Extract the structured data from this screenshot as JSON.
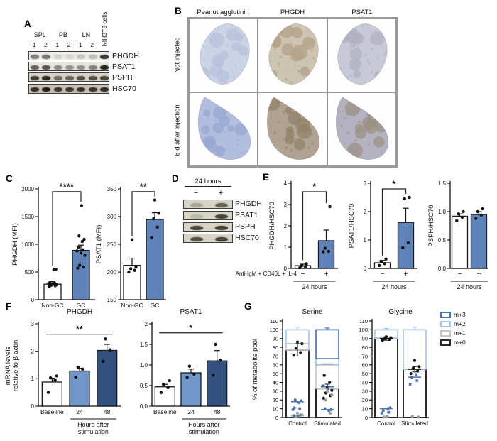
{
  "panels": {
    "a": "A",
    "b": "B",
    "c": "C",
    "d": "D",
    "e": "E",
    "f": "F",
    "g": "G"
  },
  "palette": {
    "white": "#ffffff",
    "mid_blue": "#5f82b8",
    "light_blue": "#7197c9",
    "dark_blue": "#33527f",
    "seg": {
      "m+0": "#2b2b2b",
      "m+1": "#c8c8c8",
      "m+2": "#a9c6e7",
      "m+3": "#4a72ad"
    },
    "dot": {
      "k": "#111111",
      "b": "#4a72ad",
      "g": "#9a9a9a"
    }
  },
  "panel_a": {
    "groups": [
      {
        "name": "SPL",
        "lanes": [
          "1",
          "2"
        ]
      },
      {
        "name": "PB",
        "lanes": [
          "1",
          "2"
        ]
      },
      {
        "name": "LN",
        "lanes": [
          "1",
          "2"
        ]
      }
    ],
    "extra_lane": "NIH3T3 cells",
    "rows": [
      {
        "name": "PHGDH",
        "bg": "#efede9",
        "bands": [
          0.5,
          0.55,
          0.12,
          0.1,
          0.18,
          0.22,
          0.85
        ]
      },
      {
        "name": "PSAT1",
        "bg": "#e9e6e0",
        "bands": [
          0.65,
          0.7,
          0.45,
          0.4,
          0.42,
          0.48,
          0.95
        ]
      },
      {
        "name": "PSPH",
        "bg": "#d8d3c8",
        "bands": [
          0.8,
          0.9,
          0.55,
          0.6,
          0.7,
          0.7,
          0.75
        ]
      },
      {
        "name": "HSC70",
        "bg": "#c9c4b6",
        "bands": [
          0.85,
          0.95,
          0.8,
          0.8,
          0.82,
          0.82,
          0.85
        ]
      }
    ]
  },
  "panel_b": {
    "col_headers": [
      "Peanut agglutinin",
      "PHGDH",
      "PSAT1"
    ],
    "row_labels": [
      "Not injected",
      "8 d after injection"
    ],
    "cells": [
      {
        "base": "#ccd3e6",
        "spot": "#b6c1dc"
      },
      {
        "base": "#cdc4b2",
        "spot": "#b3a288"
      },
      {
        "base": "#c7c9d6",
        "spot": "#b1b0c0"
      },
      {
        "base": "#b2bedd",
        "spot": "#97a7cf"
      },
      {
        "base": "#b0a392",
        "spot": "#93826a"
      },
      {
        "base": "#b4b1c1",
        "spot": "#9b9283"
      }
    ]
  },
  "panel_d": {
    "header": "24 hours",
    "lanes": [
      "−",
      "+"
    ],
    "rows": [
      {
        "name": "PHGDH",
        "bg": "#d9d5c6",
        "bands": [
          0.25,
          0.6
        ]
      },
      {
        "name": "PSAT1",
        "bg": "#d9d5c6",
        "bands": [
          0.15,
          0.75
        ]
      },
      {
        "name": "PSPH",
        "bg": "#d9d5c6",
        "bands": [
          0.75,
          0.8
        ]
      },
      {
        "name": "HSC70",
        "bg": "#d9d5c6",
        "bands": [
          0.7,
          0.78
        ]
      }
    ]
  },
  "panel_e": {
    "annotation": "Anti-IgM + CD40L + IL-4"
  },
  "g_legend": {
    "items": [
      {
        "label": "m+3",
        "color": "#4a72ad"
      },
      {
        "label": "m+2",
        "color": "#a9c6e7"
      },
      {
        "label": "m+1",
        "color": "#c8c8c8"
      },
      {
        "label": "m+0",
        "color": "#2b2b2b"
      }
    ]
  },
  "chart_data": [
    {
      "id": "phgdh_mfi",
      "type": "bar",
      "ylabel": "PHGDH (MFI)",
      "ylim": [
        0,
        2000
      ],
      "yticks": [
        0,
        500,
        1000,
        1500,
        2000
      ],
      "ytick_labels": [
        "0",
        "500",
        "1000",
        "1500",
        "2000"
      ],
      "categories": [
        "Non-GC",
        "GC"
      ],
      "values": [
        280,
        890
      ],
      "errors": [
        45,
        95
      ],
      "colors": [
        "white",
        "mid_blue"
      ],
      "points": [
        [
          235,
          250,
          260,
          270,
          280,
          290,
          300,
          310,
          540,
          550
        ],
        [
          570,
          590,
          620,
          800,
          840,
          880,
          900,
          950,
          1050,
          1090,
          1150,
          1700
        ]
      ],
      "sig": [
        {
          "from": 0,
          "to": 1,
          "label": "****",
          "style": "bracket",
          "y": 1950
        }
      ]
    },
    {
      "id": "psat1_mfi",
      "type": "bar",
      "ylabel": "PSAT1 (MFI)",
      "ylim": [
        150,
        350
      ],
      "yticks": [
        150,
        200,
        250,
        300,
        350
      ],
      "ytick_labels": [
        "150",
        "200",
        "250",
        "300",
        "350"
      ],
      "categories": [
        "Non-GC",
        "GC"
      ],
      "values": [
        212,
        295
      ],
      "errors": [
        13,
        12
      ],
      "colors": [
        "white",
        "mid_blue"
      ],
      "points": [
        [
          200,
          203,
          206,
          209,
          258
        ],
        [
          262,
          281,
          296,
          306,
          330
        ]
      ],
      "sig": [
        {
          "from": 0,
          "to": 1,
          "label": "**",
          "style": "bracket",
          "y": 345
        }
      ]
    },
    {
      "id": "phgdh_hsc70",
      "type": "bar",
      "ylabel": "PHGDH/HSC70",
      "ylim": [
        0,
        4
      ],
      "yticks": [
        0,
        1,
        2,
        3,
        4
      ],
      "ytick_labels": [
        "0",
        "1",
        "2",
        "3",
        "4"
      ],
      "categories": [
        "−",
        "+"
      ],
      "values": [
        0.13,
        1.3
      ],
      "errors": [
        0.07,
        0.5
      ],
      "colors": [
        "white",
        "mid_blue"
      ],
      "xfont": 10,
      "points": [
        [
          0.03,
          0.07,
          0.12,
          0.22
        ],
        [
          0.78,
          0.8,
          0.95,
          2.9
        ]
      ],
      "sig": [
        {
          "from": 0,
          "to": 1,
          "label": "*",
          "style": "bracket",
          "y": 3.6
        }
      ],
      "under": {
        "span": [
          0,
          1
        ],
        "texts": [
          "24 hours"
        ]
      }
    },
    {
      "id": "psat1_hsc70",
      "type": "bar",
      "ylabel": "PSAT1/HSC70",
      "ylim": [
        0,
        3
      ],
      "yticks": [
        0,
        1,
        2,
        3
      ],
      "ytick_labels": [
        "0",
        "1",
        "2",
        "3"
      ],
      "categories": [
        "−",
        "+"
      ],
      "values": [
        0.2,
        1.62
      ],
      "errors": [
        0.08,
        0.5
      ],
      "colors": [
        "white",
        "mid_blue"
      ],
      "xfont": 10,
      "points": [
        [
          0.1,
          0.17,
          0.25,
          0.33
        ],
        [
          0.73,
          0.9,
          2.45,
          2.5
        ]
      ],
      "sig": [
        {
          "from": 0,
          "to": 1,
          "label": "*",
          "style": "bracket",
          "y": 2.8
        }
      ],
      "under": {
        "span": [
          0,
          1
        ],
        "texts": [
          "24 hours"
        ]
      }
    },
    {
      "id": "psph_hsc70",
      "type": "bar",
      "ylabel": "PSPH/HSC70",
      "ylim": [
        0,
        1.5
      ],
      "yticks": [
        0,
        0.5,
        1,
        1.5
      ],
      "ytick_labels": [
        "0.0",
        "0.5",
        "1.0",
        "1.5"
      ],
      "categories": [
        "−",
        "+"
      ],
      "values": [
        0.92,
        0.95
      ],
      "errors": [
        0.04,
        0.05
      ],
      "colors": [
        "white",
        "mid_blue"
      ],
      "xfont": 10,
      "points": [
        [
          0.84,
          0.9,
          0.96,
          1.0
        ],
        [
          0.88,
          0.94,
          1.0,
          1.05
        ]
      ],
      "under": {
        "span": [
          0,
          1
        ],
        "texts": [
          "24 hours"
        ]
      }
    },
    {
      "id": "phgdh_mrna",
      "type": "bar",
      "title": "PHGDH",
      "ylim": [
        0,
        3
      ],
      "yticks": [
        0,
        1,
        2,
        3
      ],
      "ytick_labels": [
        "0",
        "1",
        "2",
        "3"
      ],
      "categories": [
        "Baseline",
        "24",
        "48"
      ],
      "values": [
        0.88,
        1.28,
        2.03
      ],
      "errors": [
        0.14,
        0.1,
        0.22
      ],
      "colors": [
        "white",
        "light_blue",
        "dark_blue"
      ],
      "points": [
        [
          0.5,
          0.95,
          1.03,
          1.1
        ],
        [
          1.06,
          1.35,
          1.42
        ],
        [
          1.63,
          2.05,
          2.45
        ]
      ],
      "sig": [
        {
          "from": 0,
          "to": 2,
          "label": "**",
          "style": "line",
          "y": 2.62
        }
      ],
      "under": {
        "span": [
          1,
          2
        ],
        "texts": [
          "Hours after",
          "stimulation"
        ]
      }
    },
    {
      "id": "psat1_mrna",
      "type": "bar",
      "title": "PSAT1",
      "ylim": [
        0,
        2
      ],
      "yticks": [
        0,
        0.5,
        1,
        1.5,
        2
      ],
      "ytick_labels": [
        "0.0",
        "0.5",
        "1.0",
        "1.5",
        "2"
      ],
      "categories": [
        "Baseline",
        "24",
        "48"
      ],
      "values": [
        0.47,
        0.81,
        1.1
      ],
      "errors": [
        0.06,
        0.09,
        0.25
      ],
      "colors": [
        "white",
        "light_blue",
        "dark_blue"
      ],
      "points": [
        [
          0.33,
          0.45,
          0.53,
          0.62
        ],
        [
          0.7,
          0.78,
          0.97
        ],
        [
          0.75,
          1.12,
          1.5
        ]
      ],
      "sig": [
        {
          "from": 0,
          "to": 2,
          "label": "*",
          "style": "line",
          "y": 1.78
        }
      ],
      "under": {
        "span": [
          1,
          2
        ],
        "texts": [
          "Hours after",
          "stimulation"
        ]
      }
    },
    {
      "id": "serine",
      "type": "stacked_bar",
      "title": "Serine",
      "ylabel": "% of metabolite pool",
      "ylim": [
        0,
        110
      ],
      "yticks": [
        0,
        10,
        20,
        30,
        40,
        50,
        60,
        70,
        80,
        90,
        100,
        110
      ],
      "categories": [
        "Control",
        "Stimulated"
      ],
      "order": [
        "m+0",
        "m+1",
        "m+2",
        "m+3"
      ],
      "segments": {
        "m+0": [
          77,
          33
        ],
        "m+1": [
          7,
          27
        ],
        "m+2": [
          16,
          7
        ],
        "m+3": [
          0,
          33
        ]
      },
      "m0_err": [
        7,
        5
      ],
      "top_err": [
        3,
        2
      ],
      "dots": [
        [
          {
            "v": 71,
            "c": "k"
          },
          {
            "v": 74,
            "c": "k"
          },
          {
            "v": 79,
            "c": "k"
          },
          {
            "v": 84,
            "c": "k"
          },
          {
            "v": 86,
            "c": "k"
          },
          {
            "v": 9,
            "c": "b"
          },
          {
            "v": 10,
            "c": "b"
          },
          {
            "v": 11,
            "c": "b"
          },
          {
            "v": 17,
            "c": "b"
          },
          {
            "v": 19,
            "c": "b"
          },
          {
            "v": 20,
            "c": "b"
          },
          {
            "v": 1,
            "c": "b"
          },
          {
            "v": 2,
            "c": "b"
          },
          {
            "v": 3,
            "c": "b"
          },
          {
            "v": 1,
            "c": "g"
          },
          {
            "v": 3,
            "c": "g"
          },
          {
            "v": 5,
            "c": "g"
          }
        ],
        [
          {
            "v": 22,
            "c": "k"
          },
          {
            "v": 25,
            "c": "k"
          },
          {
            "v": 28,
            "c": "k"
          },
          {
            "v": 31,
            "c": "k"
          },
          {
            "v": 34,
            "c": "k"
          },
          {
            "v": 36,
            "c": "k"
          },
          {
            "v": 40,
            "c": "k"
          },
          {
            "v": 48,
            "c": "k"
          },
          {
            "v": 8,
            "c": "b"
          },
          {
            "v": 9,
            "c": "b"
          },
          {
            "v": 10,
            "c": "b"
          },
          {
            "v": 33,
            "c": "b"
          },
          {
            "v": 36,
            "c": "b"
          },
          {
            "v": 5,
            "c": "g"
          },
          {
            "v": 20,
            "c": "g"
          },
          {
            "v": 26,
            "c": "g"
          },
          {
            "v": 30,
            "c": "g"
          }
        ]
      ],
      "dashes": [
        [
          {
            "v": 18,
            "c": "b"
          },
          {
            "v": 2,
            "c": "g"
          }
        ],
        [
          {
            "v": 9,
            "c": "b"
          },
          {
            "v": 35,
            "c": "b"
          },
          {
            "v": 61,
            "c": "g"
          }
        ]
      ]
    },
    {
      "id": "glycine",
      "type": "stacked_bar",
      "title": "Glycine",
      "ylim": [
        0,
        110
      ],
      "yticks": [
        0,
        10,
        20,
        30,
        40,
        50,
        60,
        70,
        80,
        90,
        100,
        110
      ],
      "categories": [
        "Control",
        "Stimulated"
      ],
      "order": [
        "m+0",
        "m+1",
        "m+2",
        "m+3"
      ],
      "segments": {
        "m+0": [
          90,
          55
        ],
        "m+1": [
          0,
          0
        ],
        "m+2": [
          10,
          45
        ],
        "m+3": [
          0,
          0
        ]
      },
      "m0_err": [
        2,
        3
      ],
      "top_err": [
        1.5,
        3
      ],
      "dots": [
        [
          {
            "v": 88,
            "c": "k"
          },
          {
            "v": 89,
            "c": "k"
          },
          {
            "v": 90,
            "c": "k"
          },
          {
            "v": 91,
            "c": "k"
          },
          {
            "v": 92,
            "c": "k"
          },
          {
            "v": 5,
            "c": "b"
          },
          {
            "v": 6,
            "c": "b"
          },
          {
            "v": 8,
            "c": "b"
          },
          {
            "v": 10,
            "c": "b"
          },
          {
            "v": 11,
            "c": "b"
          },
          {
            "v": 0.5,
            "c": "g"
          },
          {
            "v": 1.5,
            "c": "g"
          }
        ],
        [
          {
            "v": 50,
            "c": "k"
          },
          {
            "v": 53,
            "c": "k"
          },
          {
            "v": 56,
            "c": "k"
          },
          {
            "v": 58,
            "c": "k"
          },
          {
            "v": 65,
            "c": "k"
          },
          {
            "v": 38,
            "c": "b"
          },
          {
            "v": 42,
            "c": "b"
          },
          {
            "v": 46,
            "c": "b"
          },
          {
            "v": 49,
            "c": "b"
          },
          {
            "v": 0.5,
            "c": "g"
          },
          {
            "v": 1.5,
            "c": "g"
          }
        ]
      ],
      "dashes": [
        [
          {
            "v": 10,
            "c": "b"
          },
          {
            "v": 90,
            "c": "k"
          }
        ],
        [
          {
            "v": 46,
            "c": "b"
          },
          {
            "v": 55,
            "c": "k"
          }
        ]
      ]
    }
  ]
}
